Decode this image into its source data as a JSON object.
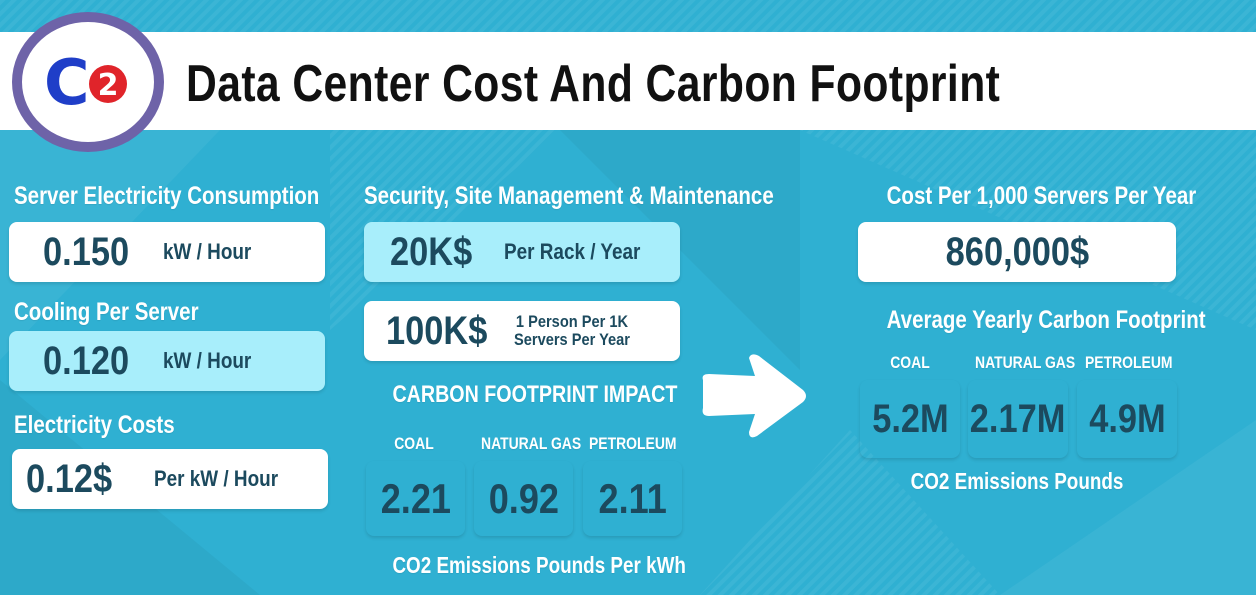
{
  "header": {
    "title": "Data Center Cost And Carbon Footprint"
  },
  "logo": {
    "text": "C",
    "subscript": "2",
    "icon": "co2-logo-icon",
    "ring_color": "#6e63a8",
    "c_color": "#1f3ec8",
    "badge_color": "#e0242a"
  },
  "left": {
    "server": {
      "label": "Server Electricity Consumption",
      "value": "0.150",
      "unit": "kW / Hour"
    },
    "cooling": {
      "label": "Cooling Per Server",
      "value": "0.120",
      "unit": "kW / Hour"
    },
    "electricity": {
      "label": "Electricity Costs",
      "value": "0.12$",
      "unit": "Per kW / Hour"
    }
  },
  "middle": {
    "security_label": "Security, Site Management & Maintenance",
    "rack": {
      "value": "20K$",
      "unit": "Per Rack / Year"
    },
    "person": {
      "value": "100K$",
      "unit_line1": "1 Person Per  1K",
      "unit_line2": "Servers Per Year"
    },
    "impact_label": "CARBON FOOTPRINT IMPACT",
    "fuels": [
      {
        "name": "COAL",
        "value": "2.21"
      },
      {
        "name": "NATURAL GAS",
        "value": "0.92"
      },
      {
        "name": "PETROLEUM",
        "value": "2.11"
      }
    ],
    "emissions_label": "CO2 Emissions Pounds Per kWh"
  },
  "arrow": {
    "icon": "right-arrow-icon"
  },
  "right": {
    "cost_label": "Cost Per 1,000 Servers Per Year",
    "cost_value": "860,000$",
    "footprint_label": "Average Yearly Carbon Footprint",
    "fuels": [
      {
        "name": "COAL",
        "value": "5.2M"
      },
      {
        "name": "NATURAL GAS",
        "value": "2.17M"
      },
      {
        "name": "PETROLEUM",
        "value": "4.9M"
      }
    ],
    "emissions_label": "CO2 Emissions Pounds"
  },
  "colors": {
    "background": "#2fb0d2",
    "box_white": "#ffffff",
    "box_light": "#a8eefb",
    "value_text": "#1c4a5e"
  }
}
